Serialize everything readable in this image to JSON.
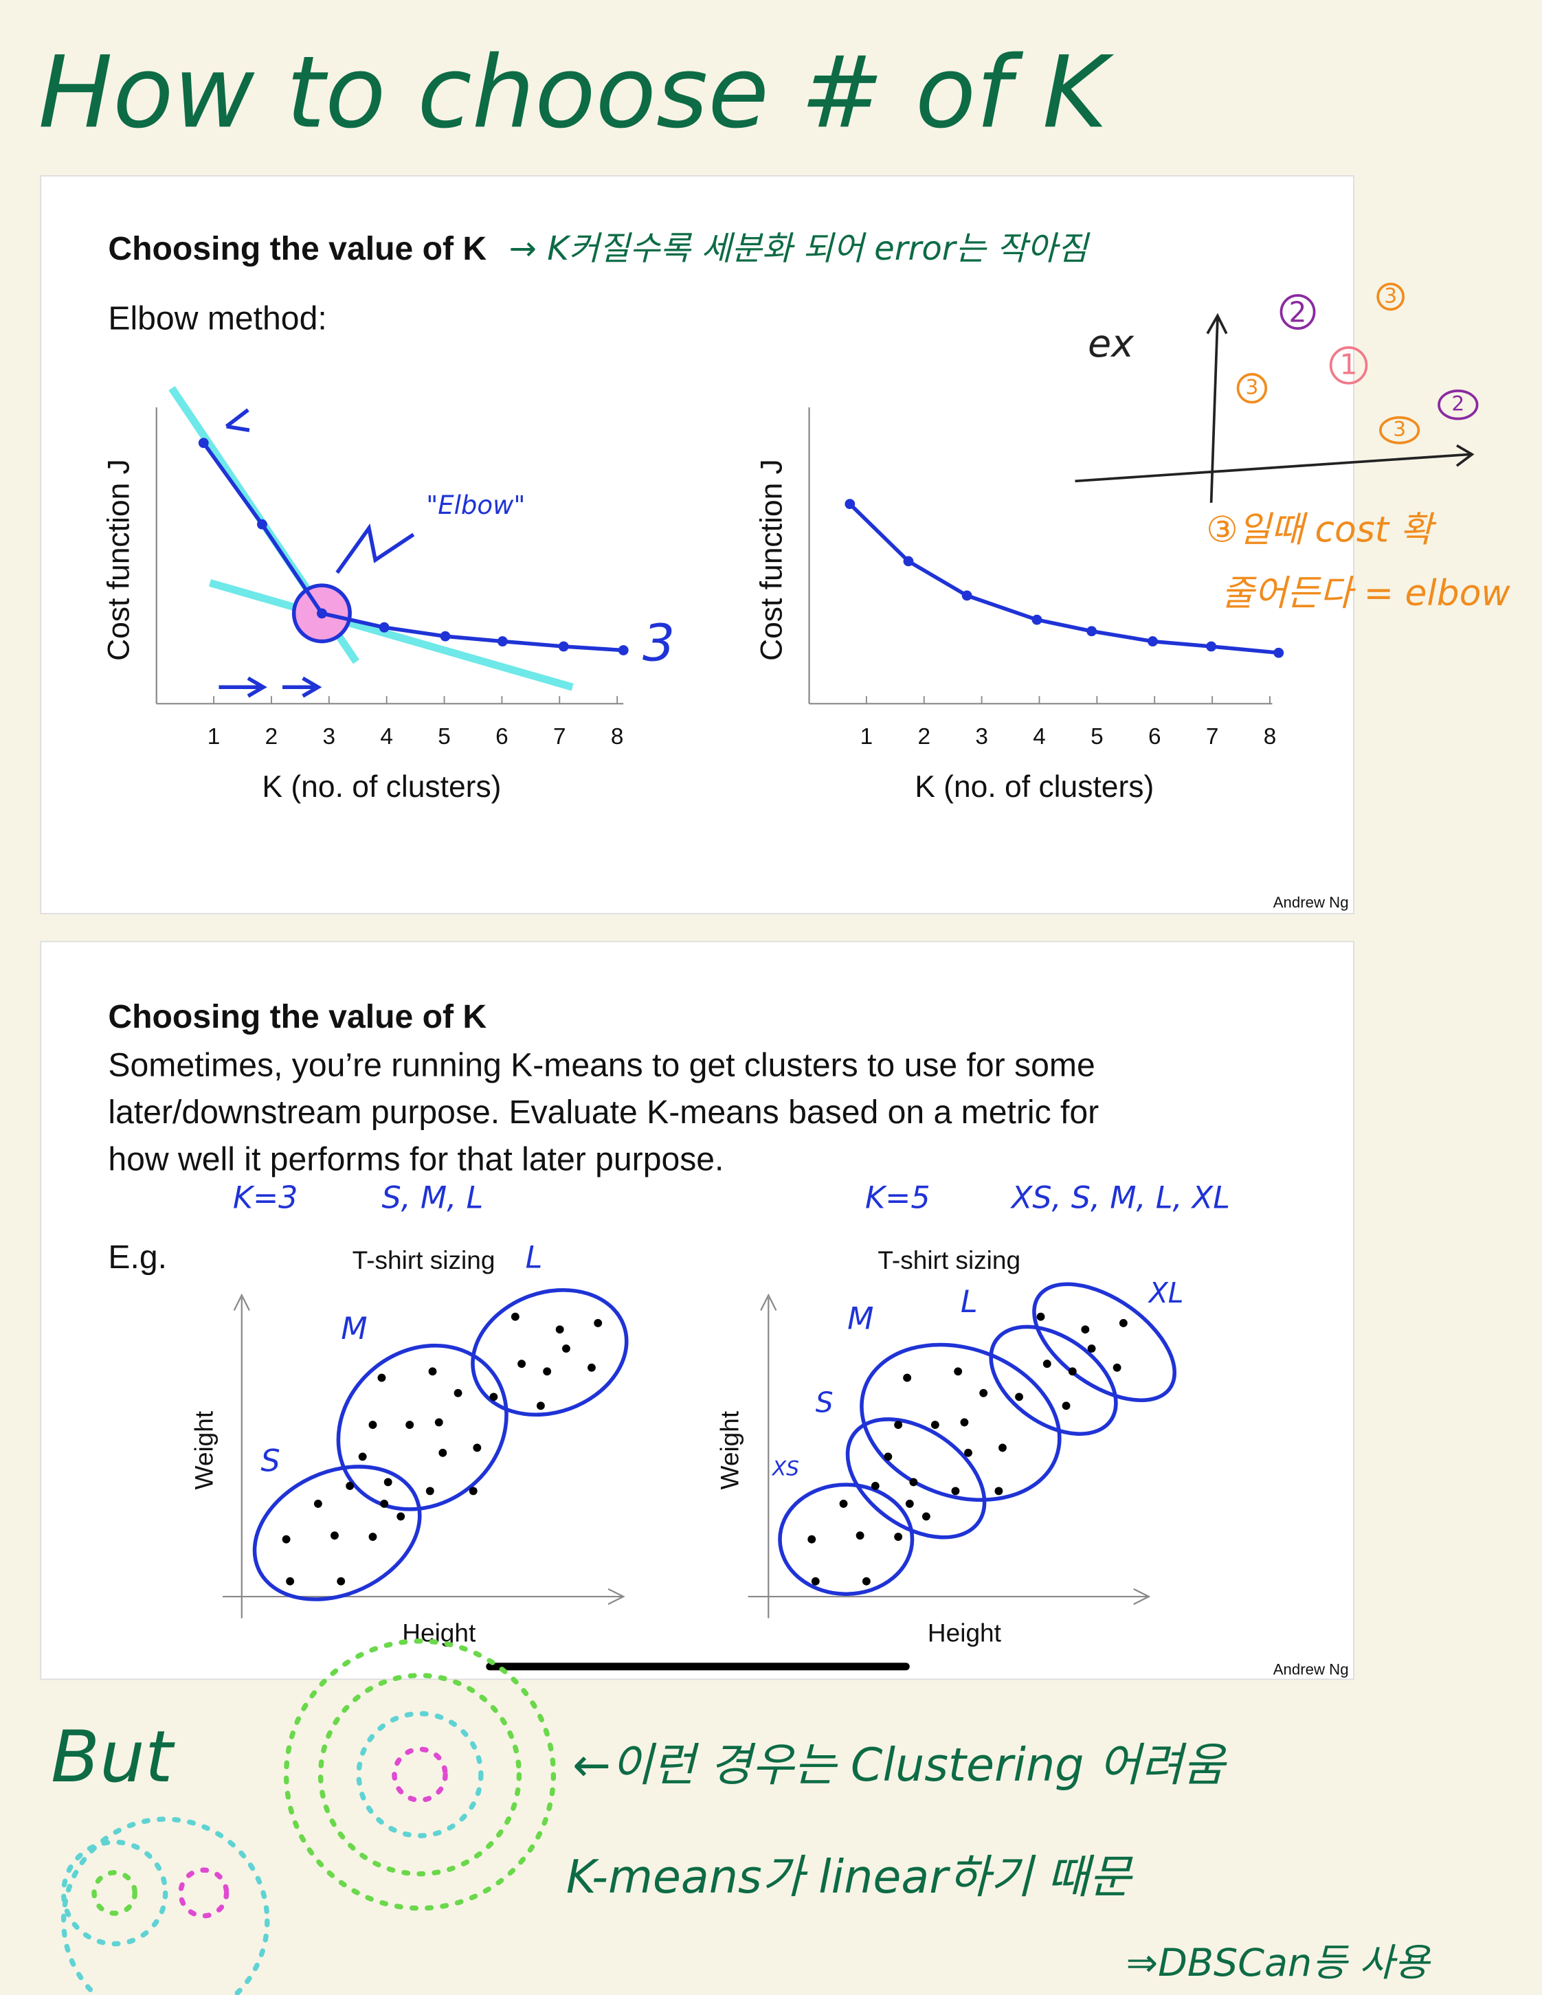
{
  "title": "How to choose # of K",
  "slide1": {
    "heading": "Choosing the value of K",
    "note": "→ K커질수록 세분화 되어 error는 작아짐",
    "subheading": "Elbow method:",
    "y_label": "Cost function J",
    "x_label": "K (no. of clusters)",
    "ticks": [
      1,
      2,
      3,
      4,
      5,
      6,
      7,
      8
    ],
    "elbow_label": "\"Elbow\"",
    "elbow_k": "3",
    "example": "ex",
    "sketch_marks": [
      "2",
      "3",
      "1",
      "3",
      "3",
      "2"
    ],
    "sketch_note": [
      "③일때 cost 확",
      "줄어든다 = elbow"
    ],
    "credit": "Andrew Ng"
  },
  "slide2": {
    "heading": "Choosing the value of K",
    "paragraph": [
      "Sometimes, you’re running K-means to get clusters to use for some",
      "later/downstream purpose. Evaluate K-means based on a metric for",
      "how well it performs for that later purpose."
    ],
    "left_note": [
      "K=3",
      "S, M, L"
    ],
    "right_note": [
      "K=5",
      "XS, S, M, L, XL"
    ],
    "eg": "E.g.",
    "plot_title": "T-shirt sizing",
    "y_label": "Weight",
    "x_label": "Height",
    "left_clusters": [
      "S",
      "M",
      "L"
    ],
    "right_clusters": [
      "XS",
      "S",
      "M",
      "L",
      "XL"
    ],
    "credit": "Andrew Ng"
  },
  "bottom": {
    "but": "But",
    "lines": [
      "←이런 경우는 Clustering 어려움",
      "K-means가 linear하기 때문",
      "⇒DBSCan등 사용"
    ]
  }
}
